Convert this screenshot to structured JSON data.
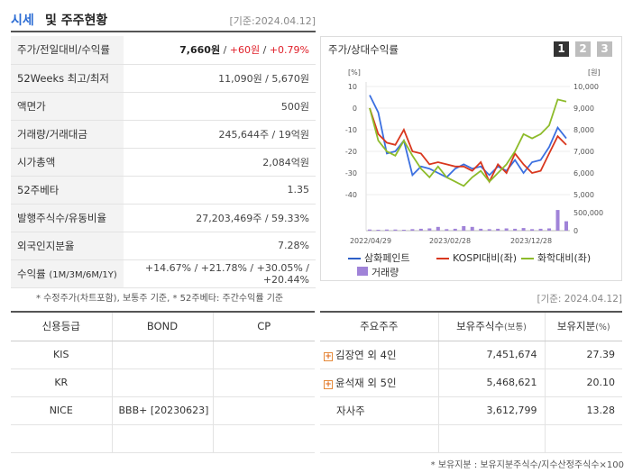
{
  "header": {
    "title_highlight": "시세",
    "title_rest": "및 주주현황",
    "date": "[기준:2024.04.12]"
  },
  "info": {
    "rows": [
      {
        "label": "주가/전일대비/수익률",
        "v1": "7,660원",
        "sep1": " / ",
        "v2": "+60원",
        "sep2": " / ",
        "v3": "+0.79%"
      },
      {
        "label": "52Weeks 최고/최저",
        "value": "11,090원 / 5,670원"
      },
      {
        "label": "액면가",
        "value": "500원"
      },
      {
        "label": "거래량/거래대금",
        "value": "245,644주 / 19억원"
      },
      {
        "label": "시가총액",
        "value": "2,084억원"
      },
      {
        "label": "52주베타",
        "value": "1.35"
      },
      {
        "label": "발행주식수/유동비율",
        "value": "27,203,469주 / 59.33%"
      },
      {
        "label": "외국인지분율",
        "value": "7.28%"
      },
      {
        "label": "수익률",
        "label_sub": "(1M/3M/6M/1Y)",
        "value": "+14.67% / +21.78% / +30.05% / +20.44%"
      }
    ],
    "footnote": "* 수정주가(차트포함), 보통주 기준, * 52주베타: 주간수익률 기준"
  },
  "chart": {
    "title": "주가/상대수익률",
    "tabs": [
      "1",
      "2",
      "3"
    ],
    "left_unit": "[%]",
    "right_unit": "[원]",
    "legend": {
      "s1": "삼화페인트",
      "s2": "KOSPI대비(좌)",
      "s3": "화학대비(좌)",
      "s4": "거래량"
    }
  },
  "chart_data": {
    "type": "line",
    "x_ticks": [
      "2022/04/29",
      "2023/02/28",
      "2023/12/28"
    ],
    "y_left": {
      "label": "[%]",
      "ticks": [
        10,
        0,
        -10,
        -20,
        -30,
        -40
      ],
      "lim": [
        -40,
        10
      ]
    },
    "y_right_price": {
      "label": "[원]",
      "ticks": [
        "10,000",
        "9,000",
        "8,000",
        "7,000",
        "6,000",
        "5,000"
      ],
      "lim": [
        5000,
        10000
      ]
    },
    "y_right_volume": {
      "ticks": [
        "500,000",
        "0"
      ]
    },
    "series": [
      {
        "name": "삼화페인트",
        "color": "#3b6fe0",
        "axis": "left",
        "values": [
          6,
          -2,
          -21,
          -20,
          -15,
          -31,
          -27,
          -28,
          -30,
          -32,
          -28,
          -26,
          -28,
          -27,
          -31,
          -27,
          -29,
          -24,
          -30,
          -25,
          -24,
          -18,
          -9,
          -14
        ]
      },
      {
        "name": "KOSPI대비(좌)",
        "color": "#d9371e",
        "axis": "left",
        "values": [
          0,
          -12,
          -16,
          -17,
          -10,
          -20,
          -21,
          -26,
          -25,
          -26,
          -27,
          -27,
          -29,
          -25,
          -34,
          -26,
          -30,
          -21,
          -26,
          -30,
          -29,
          -21,
          -13,
          -17
        ]
      },
      {
        "name": "화학대비(좌)",
        "color": "#8dbb2a",
        "axis": "left",
        "values": [
          0,
          -15,
          -20,
          -22,
          -15,
          -22,
          -28,
          -32,
          -27,
          -32,
          -34,
          -36,
          -32,
          -29,
          -34,
          -30,
          -26,
          -20,
          -12,
          -14,
          -12,
          -8,
          4,
          3
        ]
      },
      {
        "name": "거래량",
        "color": "#a083d8",
        "axis": "volume",
        "values": [
          0.03,
          0.02,
          0.03,
          0.03,
          0.02,
          0.04,
          0.05,
          0.06,
          0.1,
          0.04,
          0.05,
          0.12,
          0.1,
          0.05,
          0.04,
          0.05,
          0.06,
          0.05,
          0.07,
          0.04,
          0.05,
          0.06,
          0.55,
          0.25
        ]
      }
    ]
  },
  "date2": "[기준: 2024.04.12]",
  "credit": {
    "headers": [
      "신용등급",
      "BOND",
      "CP"
    ],
    "rows": [
      {
        "agency": "KIS",
        "bond": "",
        "cp": ""
      },
      {
        "agency": "KR",
        "bond": "",
        "cp": ""
      },
      {
        "agency": "NICE",
        "bond": "BBB+ [20230623]",
        "cp": ""
      },
      {
        "agency": "",
        "bond": "",
        "cp": ""
      }
    ]
  },
  "holders": {
    "headers": {
      "h1": "주요주주",
      "h2": "보유주식수",
      "h2_sub": "(보통)",
      "h3": "보유지분",
      "h3_sub": "(%)"
    },
    "rows": [
      {
        "name": "김장연 외 4인",
        "shares": "7,451,674",
        "pct": "27.39"
      },
      {
        "name": "윤석재 외 5인",
        "shares": "5,468,621",
        "pct": "20.10"
      },
      {
        "name": "자사주",
        "shares": "3,612,799",
        "pct": "13.28"
      },
      {
        "name": "",
        "shares": "",
        "pct": ""
      }
    ],
    "footnote": "* 보유지분 : 보유지분주식수/지수산정주식수×100"
  }
}
